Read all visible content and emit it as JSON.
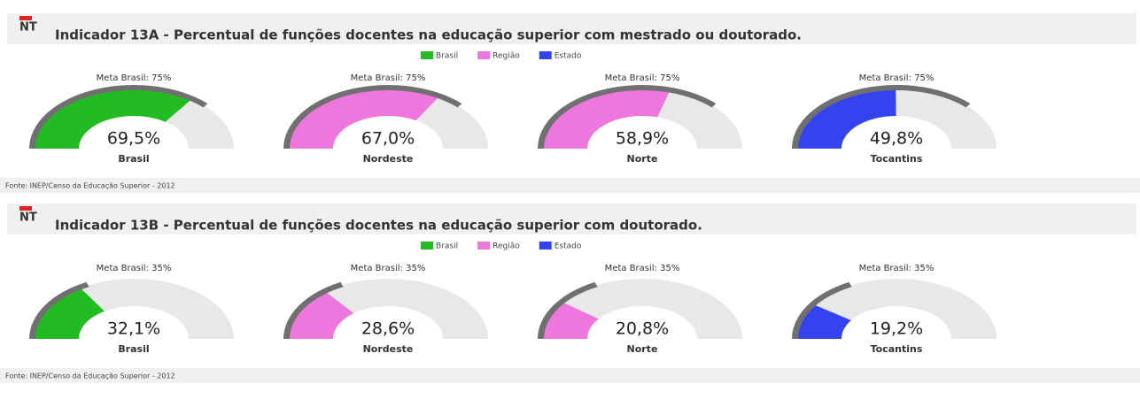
{
  "chart_data": [
    {
      "type": "gauge",
      "icon_label": "NT",
      "title": "Indicador 13A - Percentual de funções docentes na educação superior com mestrado ou doutorado.",
      "legend": [
        {
          "name": "Brasil",
          "color": "#22bb22"
        },
        {
          "name": "Região",
          "color": "#ee77dd"
        },
        {
          "name": "Estado",
          "color": "#3344ee"
        }
      ],
      "target": 75,
      "target_label": "Meta Brasil: 75%",
      "ylim": [
        0,
        100
      ],
      "categories": [
        "Brasil",
        "Nordeste",
        "Norte",
        "Tocantins"
      ],
      "values": [
        69.5,
        67.0,
        58.9,
        49.8
      ],
      "value_labels": [
        "69,5%",
        "67,0%",
        "58,9%",
        "49,8%"
      ],
      "colors": [
        "#22bb22",
        "#ee77dd",
        "#ee77dd",
        "#3344ee"
      ],
      "source": "Fonte: INEP/Censo da Educação Superior - 2012"
    },
    {
      "type": "gauge",
      "icon_label": "NT",
      "title": "Indicador 13B - Percentual de funções docentes na educação superior com doutorado.",
      "legend": [
        {
          "name": "Brasil",
          "color": "#22bb22"
        },
        {
          "name": "Região",
          "color": "#ee77dd"
        },
        {
          "name": "Estado",
          "color": "#3344ee"
        }
      ],
      "target": 35,
      "target_label": "Meta Brasil: 35%",
      "ylim": [
        0,
        100
      ],
      "categories": [
        "Brasil",
        "Nordeste",
        "Norte",
        "Tocantins"
      ],
      "values": [
        32.1,
        28.6,
        20.8,
        19.2
      ],
      "value_labels": [
        "32,1%",
        "28,6%",
        "20,8%",
        "19,2%"
      ],
      "colors": [
        "#22bb22",
        "#ee77dd",
        "#ee77dd",
        "#3344ee"
      ],
      "source": "Fonte: INEP/Censo da Educação Superior - 2012"
    }
  ]
}
